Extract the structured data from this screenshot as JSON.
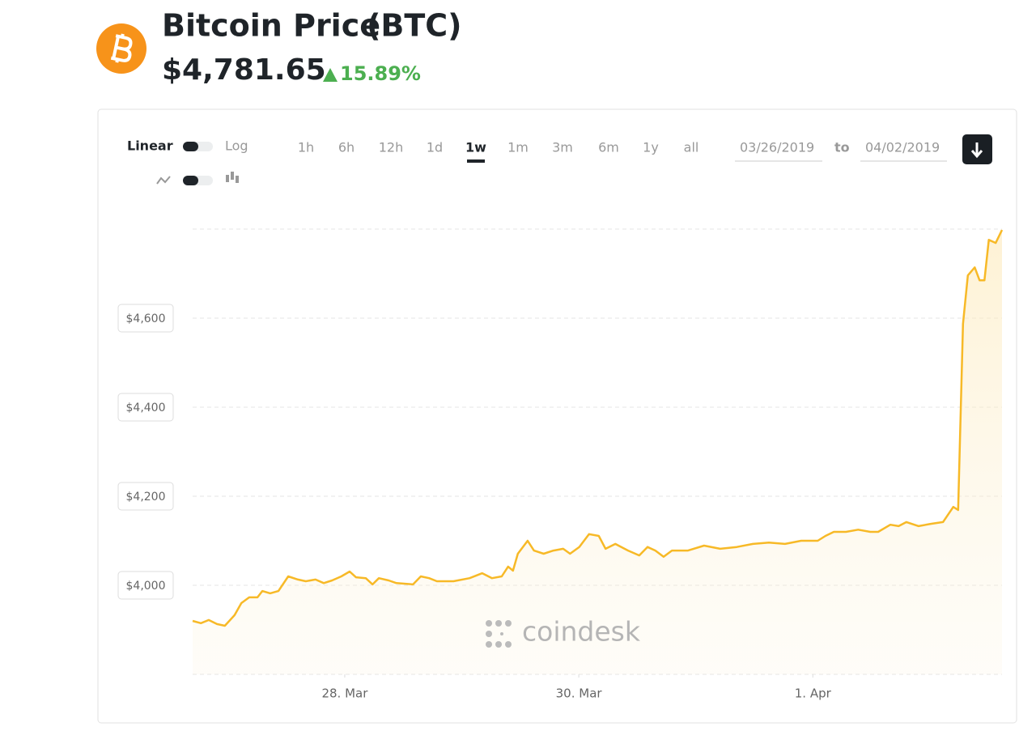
{
  "header": {
    "title": "Bitcoin Price",
    "symbol": "(BTC)",
    "price": "$4,781.65",
    "change": "15.89%"
  },
  "controls": {
    "scale_options": [
      "Linear",
      "Log"
    ],
    "ranges": [
      "1h",
      "6h",
      "12h",
      "1d",
      "1w",
      "1m",
      "3m",
      "6m",
      "1y",
      "all"
    ],
    "selected_range": 4,
    "date_from": "03/26/2019",
    "date_separator": "to",
    "date_to": "04/02/2019"
  },
  "watermark": "coindesk",
  "chart_data": {
    "type": "area",
    "color": "#f7b927",
    "x": [
      0,
      1.7,
      3.3,
      5,
      6.6,
      8.6,
      10,
      11.6,
      13.3,
      14.3,
      15.9,
      17.6,
      19.6,
      21.6,
      23.2,
      25.2,
      26.9,
      28.6,
      30.5,
      32.2,
      33.5,
      35.5,
      36.9,
      38.2,
      40.2,
      41.8,
      45.2,
      46.8,
      48.5,
      50.1,
      53.5,
      56.8,
      59.4,
      61.4,
      63.4,
      64.7,
      65.7,
      66.7,
      68.7,
      70,
      72,
      74,
      76,
      77.4,
      79.3,
      81.3,
      83.3,
      84.7,
      86.7,
      89.3,
      91.6,
      93.3,
      94.9,
      96.6,
      98.3,
      101.6,
      104.9,
      108.2,
      111.6,
      114.9,
      118.2,
      121.5,
      124.8,
      128.2,
      129.8,
      131.5,
      134,
      136.5,
      139,
      140.6,
      143.1,
      144.8,
      146.4,
      148.9,
      151.4,
      153.9,
      156,
      157,
      158,
      159,
      160.4,
      161.4,
      162.4,
      163.3,
      164.7,
      166
    ],
    "values": [
      3920,
      3915,
      3922,
      3913,
      3909,
      3933,
      3960,
      3973,
      3973,
      3987,
      3982,
      3987,
      4020,
      4013,
      4009,
      4013,
      4005,
      4011,
      4020,
      4031,
      4018,
      4016,
      4002,
      4016,
      4011,
      4005,
      4002,
      4020,
      4016,
      4009,
      4009,
      4016,
      4027,
      4016,
      4020,
      4042,
      4033,
      4071,
      4100,
      4078,
      4071,
      4078,
      4082,
      4071,
      4086,
      4115,
      4111,
      4082,
      4093,
      4078,
      4067,
      4086,
      4078,
      4064,
      4078,
      4078,
      4089,
      4082,
      4086,
      4093,
      4096,
      4093,
      4100,
      4100,
      4111,
      4120,
      4120,
      4125,
      4120,
      4120,
      4136,
      4133,
      4142,
      4133,
      4138,
      4142,
      4176,
      4169,
      4587,
      4696,
      4714,
      4685,
      4685,
      4776,
      4769,
      4798
    ],
    "xlim": [
      0,
      166
    ],
    "xticks": [
      {
        "value": 31.2,
        "label": "28. Mar"
      },
      {
        "value": 79.2,
        "label": "30. Mar"
      },
      {
        "value": 127.2,
        "label": "1. Apr"
      }
    ],
    "ylim": [
      3800,
      4800
    ],
    "yticks": [
      {
        "value": 4000,
        "label": "$4,000"
      },
      {
        "value": 4200,
        "label": "$4,200"
      },
      {
        "value": 4400,
        "label": "$4,400"
      },
      {
        "value": 4600,
        "label": "$4,600"
      }
    ],
    "grid": true
  }
}
